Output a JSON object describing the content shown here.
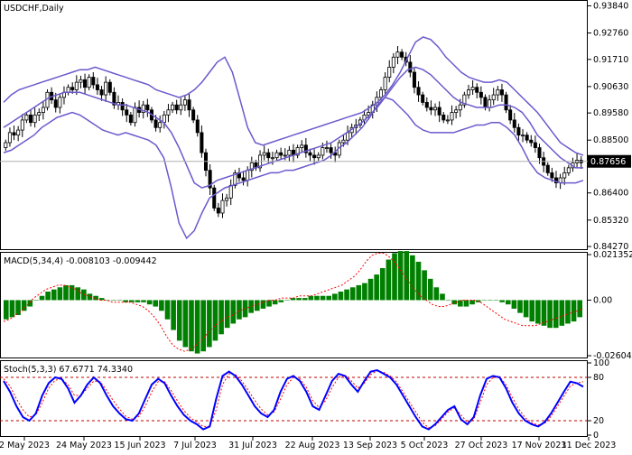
{
  "chart_data": [
    {
      "type": "candlestick",
      "symbol_label": "USDCHF,Daily",
      "current_price": "0.87656",
      "ylim": [
        0.842,
        0.94
      ],
      "yticks": [
        "0.93840",
        "0.92760",
        "0.91710",
        "0.90630",
        "0.89580",
        "0.88500",
        "0.87656",
        "0.86400",
        "0.85320",
        "0.84270"
      ],
      "candles_close": [
        0.884,
        0.888,
        0.887,
        0.889,
        0.893,
        0.895,
        0.892,
        0.895,
        0.896,
        0.898,
        0.904,
        0.901,
        0.898,
        0.902,
        0.904,
        0.906,
        0.905,
        0.908,
        0.909,
        0.906,
        0.91,
        0.907,
        0.905,
        0.903,
        0.908,
        0.904,
        0.899,
        0.9,
        0.897,
        0.895,
        0.892,
        0.898,
        0.896,
        0.899,
        0.897,
        0.893,
        0.89,
        0.892,
        0.895,
        0.897,
        0.899,
        0.897,
        0.899,
        0.901,
        0.897,
        0.893,
        0.888,
        0.88,
        0.873,
        0.866,
        0.858,
        0.856,
        0.861,
        0.862,
        0.867,
        0.872,
        0.87,
        0.869,
        0.873,
        0.876,
        0.874,
        0.879,
        0.88,
        0.878,
        0.878,
        0.88,
        0.879,
        0.879,
        0.881,
        0.879,
        0.882,
        0.883,
        0.88,
        0.879,
        0.878,
        0.879,
        0.882,
        0.882,
        0.88,
        0.879,
        0.884,
        0.885,
        0.888,
        0.89,
        0.891,
        0.893,
        0.895,
        0.896,
        0.899,
        0.902,
        0.905,
        0.91,
        0.914,
        0.918,
        0.92,
        0.918,
        0.916,
        0.912,
        0.906,
        0.903,
        0.9,
        0.898,
        0.897,
        0.898,
        0.895,
        0.893,
        0.893,
        0.896,
        0.897,
        0.899,
        0.903,
        0.905,
        0.906,
        0.904,
        0.902,
        0.898,
        0.901,
        0.903,
        0.905,
        0.903,
        0.897,
        0.893,
        0.89,
        0.887,
        0.887,
        0.885,
        0.884,
        0.882,
        0.878,
        0.875,
        0.872,
        0.87,
        0.868,
        0.87,
        0.872,
        0.874,
        0.876,
        0.877,
        0.876
      ],
      "bollinger": {
        "upper": [
          0.9,
          0.903,
          0.905,
          0.906,
          0.907,
          0.908,
          0.909,
          0.91,
          0.911,
          0.912,
          0.913,
          0.913,
          0.914,
          0.913,
          0.912,
          0.911,
          0.91,
          0.909,
          0.908,
          0.907,
          0.905,
          0.904,
          0.903,
          0.902,
          0.903,
          0.905,
          0.908,
          0.912,
          0.916,
          0.918,
          0.912,
          0.901,
          0.89,
          0.884,
          0.883,
          0.884,
          0.885,
          0.886,
          0.887,
          0.888,
          0.889,
          0.89,
          0.891,
          0.892,
          0.893,
          0.894,
          0.895,
          0.896,
          0.898,
          0.9,
          0.903,
          0.907,
          0.912,
          0.918,
          0.924,
          0.926,
          0.925,
          0.922,
          0.918,
          0.915,
          0.912,
          0.91,
          0.909,
          0.908,
          0.908,
          0.909,
          0.908,
          0.905,
          0.902,
          0.899,
          0.896,
          0.892,
          0.888,
          0.884,
          0.882,
          0.88,
          0.879
        ],
        "middle": [
          0.89,
          0.892,
          0.894,
          0.896,
          0.898,
          0.9,
          0.902,
          0.903,
          0.904,
          0.904,
          0.904,
          0.903,
          0.902,
          0.901,
          0.9,
          0.899,
          0.899,
          0.898,
          0.897,
          0.896,
          0.894,
          0.892,
          0.888,
          0.882,
          0.875,
          0.868,
          0.866,
          0.867,
          0.869,
          0.87,
          0.871,
          0.872,
          0.873,
          0.874,
          0.875,
          0.876,
          0.877,
          0.878,
          0.879,
          0.88,
          0.881,
          0.882,
          0.883,
          0.884,
          0.886,
          0.888,
          0.89,
          0.892,
          0.895,
          0.898,
          0.902,
          0.906,
          0.91,
          0.913,
          0.914,
          0.913,
          0.911,
          0.908,
          0.905,
          0.902,
          0.9,
          0.899,
          0.898,
          0.898,
          0.898,
          0.899,
          0.899,
          0.898,
          0.896,
          0.892,
          0.887,
          0.884,
          0.881,
          0.878,
          0.876,
          0.874,
          0.874
        ],
        "lower": [
          0.88,
          0.881,
          0.883,
          0.885,
          0.887,
          0.89,
          0.892,
          0.894,
          0.895,
          0.896,
          0.895,
          0.893,
          0.891,
          0.889,
          0.888,
          0.887,
          0.888,
          0.887,
          0.886,
          0.885,
          0.883,
          0.878,
          0.866,
          0.852,
          0.846,
          0.849,
          0.856,
          0.862,
          0.864,
          0.866,
          0.867,
          0.868,
          0.869,
          0.87,
          0.871,
          0.872,
          0.872,
          0.873,
          0.873,
          0.874,
          0.875,
          0.876,
          0.877,
          0.879,
          0.882,
          0.884,
          0.887,
          0.89,
          0.894,
          0.899,
          0.902,
          0.901,
          0.898,
          0.895,
          0.891,
          0.889,
          0.888,
          0.888,
          0.888,
          0.888,
          0.889,
          0.89,
          0.891,
          0.891,
          0.892,
          0.892,
          0.89,
          0.887,
          0.882,
          0.876,
          0.872,
          0.87,
          0.869,
          0.868,
          0.868,
          0.868,
          0.869
        ]
      }
    },
    {
      "type": "bar",
      "label": "MACD(5,34,4) -0.008103 -0.009442",
      "ylim": [
        -0.02604,
        0.02135
      ],
      "yticks": [
        "0.021352",
        "0.00",
        "-0.026041"
      ],
      "values": [
        -0.009,
        -0.008,
        -0.007,
        -0.005,
        -0.003,
        0.0,
        0.002,
        0.004,
        0.005,
        0.006,
        0.007,
        0.007,
        0.006,
        0.005,
        0.003,
        0.002,
        0.001,
        0.0,
        0.0,
        0.0,
        -0.001,
        -0.001,
        -0.001,
        -0.001,
        -0.002,
        -0.003,
        -0.005,
        -0.009,
        -0.014,
        -0.019,
        -0.022,
        -0.024,
        -0.025,
        -0.024,
        -0.022,
        -0.019,
        -0.016,
        -0.013,
        -0.011,
        -0.009,
        -0.008,
        -0.006,
        -0.005,
        -0.004,
        -0.003,
        -0.002,
        -0.001,
        0.0,
        0.001,
        0.001,
        0.001,
        0.002,
        0.002,
        0.002,
        0.002,
        0.003,
        0.004,
        0.005,
        0.006,
        0.007,
        0.008,
        0.01,
        0.012,
        0.015,
        0.019,
        0.022,
        0.023,
        0.023,
        0.021,
        0.018,
        0.014,
        0.01,
        0.006,
        0.003,
        0.0,
        -0.002,
        -0.003,
        -0.003,
        -0.002,
        -0.001,
        0.0,
        0.0,
        0.0,
        -0.001,
        -0.002,
        -0.004,
        -0.006,
        -0.008,
        -0.01,
        -0.011,
        -0.012,
        -0.013,
        -0.013,
        -0.012,
        -0.011,
        -0.01,
        -0.008
      ],
      "signal": [
        -0.01,
        -0.009,
        -0.007,
        -0.005,
        -0.002,
        0.001,
        0.003,
        0.005,
        0.006,
        0.007,
        0.007,
        0.006,
        0.005,
        0.003,
        0.002,
        0.001,
        0.0,
        0.0,
        -0.001,
        -0.001,
        -0.001,
        -0.001,
        -0.002,
        -0.003,
        -0.005,
        -0.008,
        -0.012,
        -0.017,
        -0.021,
        -0.023,
        -0.024,
        -0.023,
        -0.021,
        -0.018,
        -0.015,
        -0.012,
        -0.01,
        -0.008,
        -0.007,
        -0.005,
        -0.004,
        -0.003,
        -0.002,
        -0.001,
        0.0,
        0.0,
        0.001,
        0.001,
        0.001,
        0.002,
        0.002,
        0.002,
        0.003,
        0.004,
        0.005,
        0.006,
        0.007,
        0.009,
        0.011,
        0.014,
        0.018,
        0.021,
        0.022,
        0.022,
        0.02,
        0.017,
        0.013,
        0.009,
        0.005,
        0.002,
        0.0,
        -0.002,
        -0.003,
        -0.003,
        -0.002,
        -0.001,
        0.0,
        0.0,
        0.0,
        -0.001,
        -0.003,
        -0.005,
        -0.007,
        -0.009,
        -0.01,
        -0.011,
        -0.012,
        -0.012,
        -0.012,
        -0.011,
        -0.01,
        -0.009,
        -0.008,
        -0.007,
        -0.006,
        -0.005,
        -0.004
      ]
    },
    {
      "type": "line",
      "label": "Stoch(5,3,3) 67.6771 74.3340",
      "ylim": [
        0,
        100
      ],
      "yticks": [
        "100",
        "80",
        "20",
        "0"
      ],
      "levels": [
        80,
        20
      ],
      "main": [
        75,
        60,
        40,
        25,
        20,
        30,
        55,
        72,
        80,
        78,
        65,
        45,
        55,
        70,
        80,
        72,
        55,
        40,
        30,
        22,
        20,
        30,
        50,
        70,
        78,
        72,
        55,
        40,
        28,
        20,
        15,
        8,
        12,
        50,
        82,
        88,
        82,
        70,
        55,
        40,
        30,
        25,
        35,
        60,
        78,
        82,
        75,
        60,
        40,
        35,
        55,
        75,
        85,
        82,
        70,
        60,
        75,
        88,
        90,
        85,
        80,
        70,
        55,
        40,
        25,
        12,
        8,
        15,
        25,
        35,
        40,
        22,
        15,
        25,
        55,
        78,
        82,
        80,
        65,
        45,
        30,
        20,
        15,
        12,
        18,
        30,
        45,
        60,
        74,
        72,
        67
      ],
      "signal": [
        78,
        68,
        50,
        35,
        25,
        28,
        45,
        65,
        76,
        78,
        70,
        55,
        55,
        65,
        75,
        74,
        62,
        48,
        36,
        26,
        22,
        26,
        40,
        60,
        74,
        74,
        62,
        47,
        34,
        24,
        18,
        12,
        12,
        35,
        70,
        85,
        84,
        75,
        62,
        48,
        36,
        28,
        32,
        50,
        70,
        80,
        78,
        66,
        48,
        38,
        48,
        66,
        80,
        83,
        75,
        65,
        72,
        84,
        89,
        87,
        82,
        74,
        60,
        46,
        32,
        18,
        10,
        13,
        22,
        32,
        38,
        28,
        18,
        22,
        45,
        70,
        80,
        81,
        70,
        52,
        36,
        24,
        17,
        14,
        16,
        26,
        40,
        54,
        68,
        72,
        74
      ]
    }
  ],
  "x_labels": [
    "2 May 2023",
    "24 May 2023",
    "15 Jun 2023",
    "7 Jul 2023",
    "31 Jul 2023",
    "22 Aug 2023",
    "13 Sep 2023",
    "5 Oct 2023",
    "27 Oct 2023",
    "17 Nov 2023",
    "11 Dec 2023"
  ],
  "colors": {
    "bull": "#000000",
    "bear": "#000000",
    "band": "#6a5acd",
    "macd_bar": "#008000",
    "signal": "#ff0000",
    "stoch_main": "#0000ff",
    "stoch_signal": "#ff0000",
    "grid": "#c0c0c0"
  }
}
